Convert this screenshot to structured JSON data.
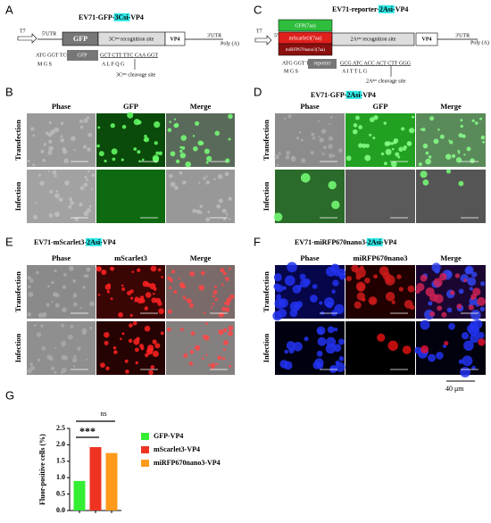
{
  "panel_labels": [
    "A",
    "B",
    "C",
    "D",
    "E",
    "F",
    "G"
  ],
  "panel_a": {
    "title": [
      "EV71-GFP-",
      "3Csi",
      "-VP4"
    ],
    "promoter": "T7",
    "utr5": "5'UTR",
    "gfp": "GFP",
    "site": "3Cᵖʳᵒ recognition site",
    "vp4": "VP4",
    "utr3": "3'UTR",
    "polya": "Poly (A)",
    "seq_start": "ATG GGT TCG",
    "seq_box": "GFP",
    "seq_end": "GCT CTT TTC CAA GGT",
    "aa_start": "M   G   S",
    "aa_end": "A    L    F    Q    G",
    "cleavage": "3Cᵖʳᵒ cleavage site"
  },
  "panel_c": {
    "title": [
      "EV71-reporter-",
      "2Asi",
      "-VP4"
    ],
    "promoter": "T7",
    "utr5": "5'UTR",
    "reporters": [
      "GFP(7aa)",
      "mScarlet3(7aa)",
      "miRFP670nano3(7aa)"
    ],
    "site": "2Aᵖʳᵒ recognition site",
    "vp4": "VP4",
    "utr3": "3'UTR",
    "polya": "Poly (A)",
    "seq_start": "ATG GGT TCG",
    "seq_box": "reporter",
    "seq_end": "GCG ATC ACC ACT CTT GGG",
    "aa_start": "M   G   S",
    "aa_end": "A    I    T    T    L    G",
    "cleavage": "2Aᵖʳᵒ cleavage site"
  },
  "panel_b": {
    "columns": [
      "Phase",
      "GFP",
      "Merge"
    ],
    "rows": [
      "Transfection",
      "Infection"
    ]
  },
  "panel_d": {
    "title": [
      "EV71-GFP-",
      "2Asi",
      "-VP4"
    ],
    "columns": [
      "Phase",
      "GFP",
      "Merge"
    ],
    "rows": [
      "Transfection",
      "Infection"
    ]
  },
  "panel_e": {
    "title": [
      "EV71-mScarlet3-",
      "2Asi",
      "-VP4"
    ],
    "columns": [
      "Phase",
      "mScarlet3",
      "Merge"
    ],
    "rows": [
      "Transfection",
      "Infection"
    ]
  },
  "panel_f": {
    "title": [
      "EV71-miRFP670nano3-",
      "2Asi",
      "-VP4"
    ],
    "columns": [
      "Phase",
      "miRFP670nano3",
      "Merge"
    ],
    "rows": [
      "Transfection",
      "Infection"
    ],
    "scale_bar": "40 μm"
  },
  "chart_data": {
    "type": "bar",
    "ylabel": "Fluor-positive cells (%)",
    "categories": [
      "GFP-VP4",
      "mScarlet3-VP4",
      "miRFP670nano3-VP4"
    ],
    "values": [
      0.9,
      1.93,
      1.75
    ],
    "colors": [
      "#33ee33",
      "#ee3322",
      "#ff9a1a"
    ],
    "ylim": [
      0,
      2.5
    ],
    "yticks": [
      {
        "value": 0,
        "label": "0.0"
      },
      {
        "value": 0.5,
        "label": "0.5"
      },
      {
        "value": 1,
        "label": "1.0"
      },
      {
        "value": 1.5,
        "label": "1.5"
      },
      {
        "value": 2,
        "label": "2.0"
      },
      {
        "value": 2.5,
        "label": "2.5"
      }
    ],
    "annotations": [
      "***",
      "ns"
    ]
  }
}
